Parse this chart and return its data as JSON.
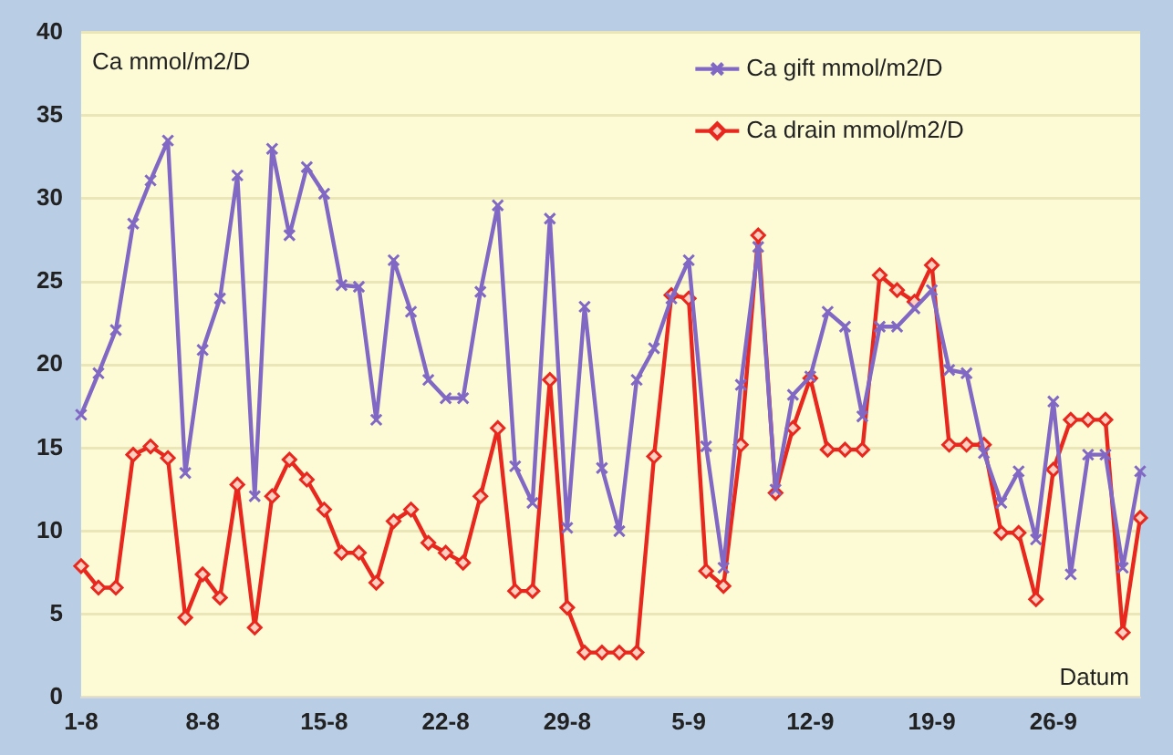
{
  "chart_data": {
    "type": "line",
    "ylabel": "Ca mmol/m2/D",
    "xlabel": "Datum",
    "categories": [
      "1-8",
      null,
      null,
      null,
      null,
      null,
      null,
      "8-8",
      null,
      null,
      null,
      null,
      null,
      null,
      "15-8",
      null,
      null,
      null,
      null,
      null,
      null,
      "22-8",
      null,
      null,
      null,
      null,
      null,
      null,
      "29-8",
      null,
      null,
      null,
      null,
      null,
      null,
      "5-9",
      null,
      null,
      null,
      null,
      null,
      null,
      "12-9",
      null,
      null,
      null,
      null,
      null,
      null,
      "19-9",
      null,
      null,
      null,
      null,
      null,
      null,
      "26-9",
      null,
      null,
      null,
      null,
      null
    ],
    "series": [
      {
        "name": "Ca gift mmol/m2/D",
        "color": "#8068c4",
        "marker": "cross",
        "values": [
          17.0,
          19.5,
          22.1,
          28.5,
          31.1,
          33.5,
          13.5,
          20.9,
          24.0,
          31.4,
          12.1,
          33.0,
          27.8,
          31.9,
          30.3,
          24.8,
          24.7,
          16.7,
          26.3,
          23.2,
          19.1,
          18.0,
          18.0,
          24.4,
          29.6,
          13.9,
          11.7,
          28.8,
          10.2,
          23.5,
          13.8,
          10.0,
          19.1,
          21.0,
          24.0,
          26.3,
          15.1,
          7.8,
          18.8,
          27.1,
          12.5,
          18.2,
          19.3,
          23.2,
          22.3,
          16.9,
          22.3,
          22.3,
          23.4,
          24.5,
          19.7,
          19.5,
          14.7,
          11.7,
          13.6,
          9.5,
          17.8,
          7.4,
          14.6,
          14.6,
          7.8,
          13.6
        ]
      },
      {
        "name": "Ca drain mmol/m2/D",
        "color": "#e8281e",
        "marker": "diamond",
        "values": [
          7.9,
          6.6,
          6.6,
          14.6,
          15.1,
          14.4,
          4.8,
          7.4,
          6.0,
          12.8,
          4.2,
          12.1,
          14.3,
          13.1,
          11.3,
          8.7,
          8.7,
          6.9,
          10.6,
          11.3,
          9.3,
          8.7,
          8.1,
          12.1,
          16.2,
          6.4,
          6.4,
          19.1,
          5.4,
          2.7,
          2.7,
          2.7,
          2.7,
          14.5,
          24.2,
          24.0,
          7.6,
          6.7,
          15.2,
          27.8,
          12.3,
          16.2,
          19.2,
          14.9,
          14.9,
          14.9,
          25.4,
          24.5,
          23.8,
          26.0,
          15.2,
          15.2,
          15.2,
          9.9,
          9.9,
          5.9,
          13.7,
          16.7,
          16.7,
          16.7,
          3.9,
          10.8
        ]
      }
    ],
    "ylim": [
      0,
      40
    ],
    "yticks": [
      0,
      5,
      10,
      15,
      20,
      25,
      30,
      35,
      40
    ],
    "grid": "y",
    "legend": "top right"
  }
}
